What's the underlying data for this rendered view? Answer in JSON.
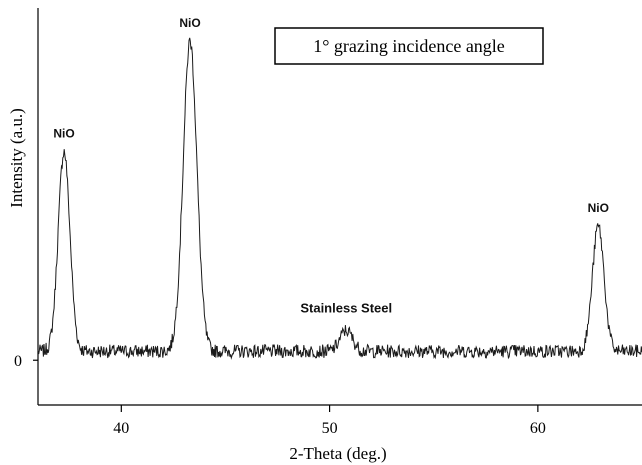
{
  "chart_data": {
    "type": "line",
    "title": "",
    "xlabel": "2-Theta (deg.)",
    "ylabel": "Intensity (a.u.)",
    "xlim": [
      36,
      65
    ],
    "ylim": [
      -0.15,
      1.18
    ],
    "x_ticks": [
      40,
      50,
      60
    ],
    "x_tick_labels": [
      "40",
      "50",
      "60"
    ],
    "y_ticks": [
      0
    ],
    "y_tick_labels": [
      "0"
    ],
    "grid": false,
    "legend_box": "1° grazing incidence angle",
    "line_color": "#1a1a1a",
    "series": [
      {
        "baseline": 0.03,
        "peaks": [
          {
            "center": 37.25,
            "height": 0.67,
            "width": 0.28,
            "label": "NiO"
          },
          {
            "center": 43.3,
            "height": 1.04,
            "width": 0.33,
            "label": "NiO"
          },
          {
            "center": 50.8,
            "height": 0.07,
            "width": 0.3,
            "label": "Stainless Steel"
          },
          {
            "center": 62.9,
            "height": 0.42,
            "width": 0.28,
            "label": "NiO"
          }
        ]
      }
    ]
  }
}
